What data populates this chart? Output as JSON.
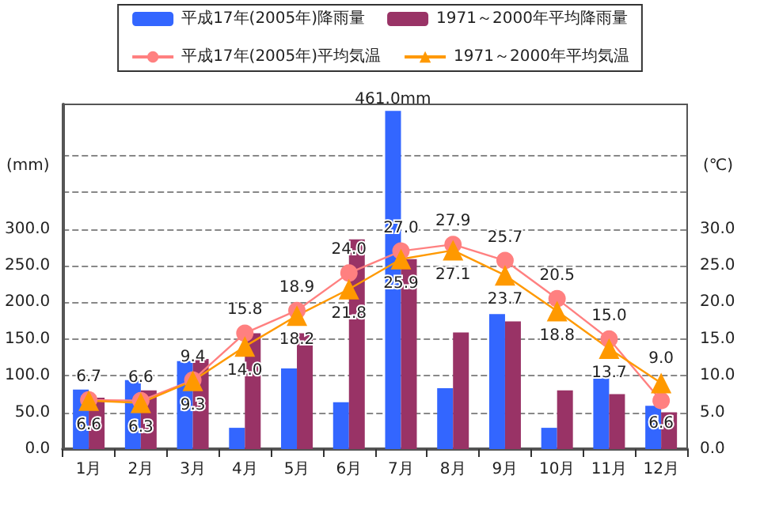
{
  "chart_data": {
    "type": "bar",
    "categories": [
      "1月",
      "2月",
      "3月",
      "4月",
      "5月",
      "6月",
      "7月",
      "8月",
      "9月",
      "10月",
      "11月",
      "12月"
    ],
    "series": [
      {
        "name": "平成17年(2005年)降雨量",
        "color": "#3366ff",
        "values": [
          81,
          94,
          120,
          29,
          110,
          64,
          461,
          83,
          184,
          29,
          98,
          59
        ],
        "value_labels": [
          null,
          null,
          null,
          null,
          null,
          null,
          "461.0mm",
          null,
          null,
          null,
          null,
          null
        ]
      },
      {
        "name": "1971～2000年平均降雨量",
        "color": "#993366",
        "values": [
          70,
          80,
          123,
          158,
          158,
          286,
          259,
          159,
          174,
          80,
          75,
          50
        ]
      },
      {
        "name": "平成17年(2005年)平均気温",
        "type": "line",
        "axis": "y2",
        "color": "#ff8080",
        "marker": "circle",
        "values": [
          6.7,
          6.6,
          9.4,
          15.8,
          18.9,
          24.0,
          27.0,
          27.9,
          25.7,
          20.5,
          15.0,
          6.6
        ],
        "value_labels": [
          "6.7",
          "6.6",
          "9.4",
          "15.8",
          "18.9",
          "24.0",
          "27.0",
          "27.9",
          "25.7",
          "20.5",
          "15.0",
          "6.6"
        ]
      },
      {
        "name": "1971～2000年平均気温",
        "type": "line",
        "axis": "y2",
        "color": "#ff9900",
        "marker": "triangle",
        "values": [
          6.6,
          6.3,
          9.3,
          14.0,
          18.2,
          21.8,
          25.9,
          27.1,
          23.7,
          18.8,
          13.7,
          9.0
        ],
        "value_labels": [
          "6.6",
          "6.3",
          "9.3",
          "14.0",
          "18.2",
          "21.8",
          "25.9",
          "27.1",
          "23.7",
          "18.8",
          "13.7",
          "9.0"
        ]
      }
    ],
    "ylabel": "(mm)",
    "y2label": "(℃)",
    "ylim": [
      0,
      470
    ],
    "yticks": [
      {
        "value": 0,
        "label": "0.0"
      },
      {
        "value": 50,
        "label": "50.0"
      },
      {
        "value": 100,
        "label": "100.0"
      },
      {
        "value": 150,
        "label": "150.0"
      },
      {
        "value": 200,
        "label": "200.0"
      },
      {
        "value": 250,
        "label": "250.0"
      },
      {
        "value": 300,
        "label": "300.0"
      },
      {
        "value": 350,
        "label": null
      },
      {
        "value": 400,
        "label": null
      }
    ],
    "y2lim": [
      0,
      47
    ],
    "y2ticks": [
      {
        "value": 0,
        "label": "0.0"
      },
      {
        "value": 5,
        "label": "5.0"
      },
      {
        "value": 10,
        "label": "10.0"
      },
      {
        "value": 15,
        "label": "15.0"
      },
      {
        "value": 20,
        "label": "20.0"
      },
      {
        "value": 25,
        "label": "25.0"
      },
      {
        "value": 30,
        "label": "30.0"
      },
      {
        "value": 35,
        "label": null
      },
      {
        "value": 40,
        "label": null
      }
    ],
    "grid": "y",
    "legend": "top"
  }
}
